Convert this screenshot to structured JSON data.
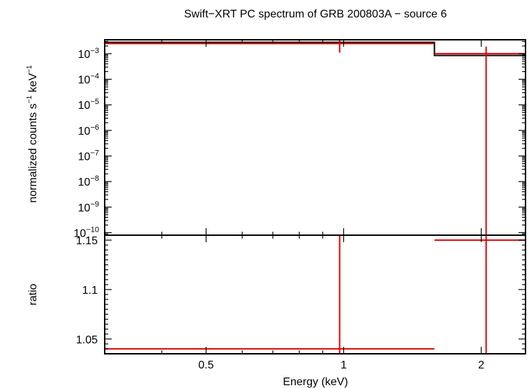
{
  "chart_data": [
    {
      "panel": "top",
      "type": "line",
      "title": "Swift−XRT PC spectrum of GRB 200803A − source 6",
      "ylabel_main": "normalized counts s",
      "ylabel_exp1": "−1",
      "ylabel_mid": " keV",
      "ylabel_exp2": "−1",
      "y_scale": "log",
      "ylim": [
        8e-11,
        0.0035
      ],
      "y_ticks": [
        {
          "value": 0.001,
          "exp": "−3"
        },
        {
          "value": 0.0001,
          "exp": "−4"
        },
        {
          "value": 1e-05,
          "exp": "−5"
        },
        {
          "value": 1e-06,
          "exp": "−6"
        },
        {
          "value": 1e-07,
          "exp": "−7"
        },
        {
          "value": 1e-08,
          "exp": "−8"
        },
        {
          "value": 1e-09,
          "exp": "−9"
        },
        {
          "value": 1e-10,
          "exp": "−10"
        }
      ],
      "model_steps": [
        {
          "x0": 0.3,
          "x1": 1.58,
          "y": 0.0028
        },
        {
          "x0": 1.58,
          "x1": 2.5,
          "y": 0.00085
        }
      ],
      "data_points": [
        {
          "x": 0.98,
          "xerr": [
            0.3,
            1.58
          ],
          "y": 0.0025,
          "ylo": 0.0011,
          "yhi": 0.0035
        },
        {
          "x": 2.05,
          "xerr": [
            1.58,
            2.5
          ],
          "y": 0.001,
          "ylo": 8e-11,
          "yhi": 0.0019
        }
      ]
    },
    {
      "panel": "bottom",
      "type": "line",
      "ylabel": "ratio",
      "xlabel": "Energy (keV)",
      "x_scale": "log",
      "xlim": [
        0.3,
        2.5
      ],
      "x_ticks": [
        {
          "value": 0.5,
          "label": "0.5"
        },
        {
          "value": 1,
          "label": "1"
        },
        {
          "value": 2,
          "label": "2"
        }
      ],
      "ylim": [
        1.035,
        1.155
      ],
      "y_ticks": [
        {
          "value": 1.15,
          "label": "1.15"
        },
        {
          "value": 1.1,
          "label": "1.1"
        },
        {
          "value": 1.05,
          "label": "1.05"
        }
      ],
      "data_points": [
        {
          "x": 0.98,
          "xerr": [
            0.3,
            1.58
          ],
          "y": 1.04,
          "ylo": 1.035,
          "yhi": 1.155
        },
        {
          "x": 2.05,
          "xerr": [
            1.58,
            2.5
          ],
          "y": 1.15,
          "ylo": 1.035,
          "yhi": 1.155
        }
      ]
    }
  ],
  "colors": {
    "model": "#000000",
    "data": "#e00000",
    "axes": "#000000"
  }
}
